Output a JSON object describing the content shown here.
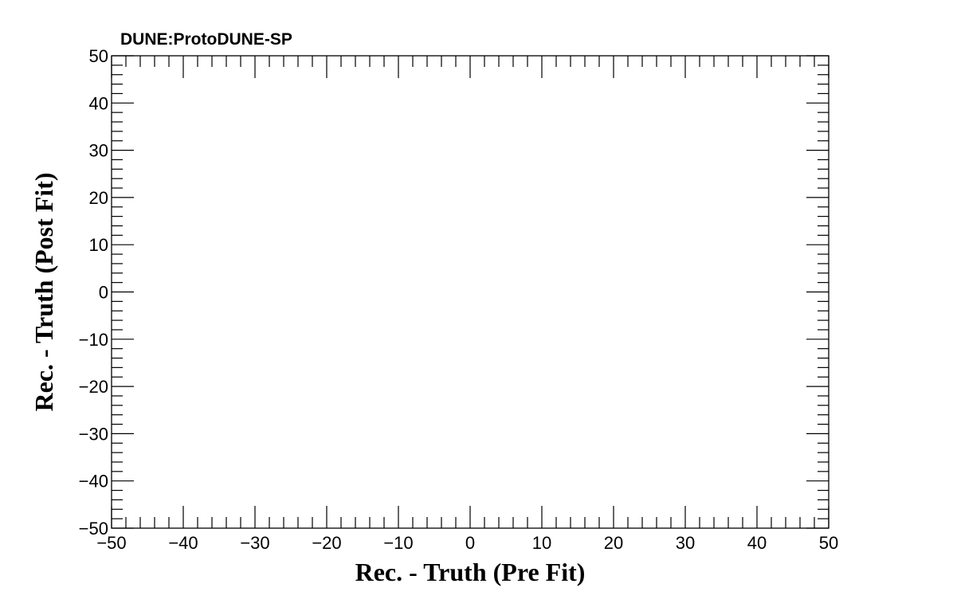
{
  "chart_data": {
    "type": "scatter",
    "title": "DUNE:ProtoDUNE-SP",
    "xlabel": "Rec. - Truth (Pre Fit)",
    "ylabel": "Rec. - Truth (Post Fit)",
    "xlim": [
      -50,
      50
    ],
    "ylim": [
      -50,
      50
    ],
    "xticks": [
      -50,
      -40,
      -30,
      -20,
      -10,
      0,
      10,
      20,
      30,
      40,
      50
    ],
    "yticks": [
      -50,
      -40,
      -30,
      -20,
      -10,
      0,
      10,
      20,
      30,
      40,
      50
    ],
    "xtick_labels": [
      "−50",
      "−40",
      "−30",
      "−20",
      "−10",
      "0",
      "10",
      "20",
      "30",
      "40",
      "50"
    ],
    "ytick_labels": [
      "−50",
      "−40",
      "−30",
      "−20",
      "−10",
      "0",
      "10",
      "20",
      "30",
      "40",
      "50"
    ],
    "minor_divisions": 5,
    "grid": false,
    "series": [],
    "colors": {
      "axis": "#000000",
      "background": "#ffffff"
    }
  }
}
